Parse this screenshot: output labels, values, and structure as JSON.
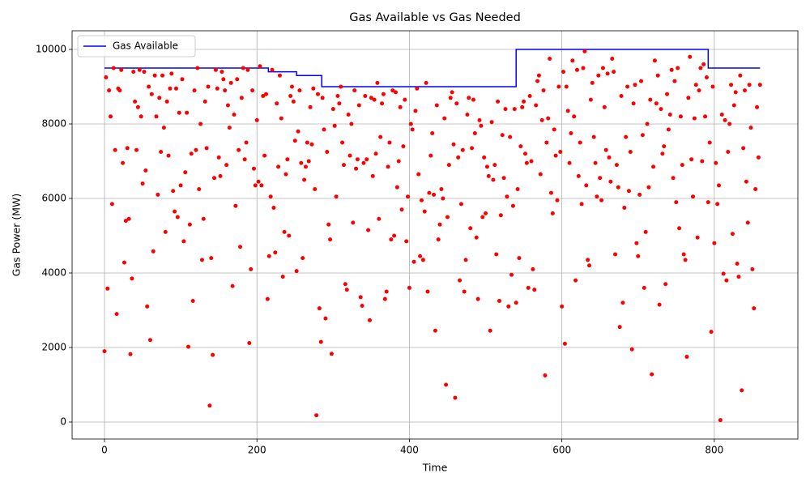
{
  "chart_data": {
    "type": "line",
    "title": "Gas Available vs Gas Needed",
    "xlabel": "Time",
    "ylabel": "Gas Power (MW)",
    "xlim": [
      -42.5,
      909.6
    ],
    "xticks": [
      0,
      200,
      400,
      600,
      800
    ],
    "ylim": [
      -457,
      10500
    ],
    "yticks": [
      0,
      2000,
      4000,
      6000,
      8000,
      10000
    ],
    "grid": true,
    "legend": "upper left",
    "series": [
      {
        "name": "Gas Available",
        "color": "#0000ff",
        "type": "line",
        "x": [
          0,
          215,
          215,
          252,
          252,
          285,
          285,
          540,
          540,
          792,
          792,
          860
        ],
        "values": [
          9500,
          9500,
          9400,
          9400,
          9300,
          9300,
          9000,
          9000,
          10000,
          10000,
          9500,
          9500
        ]
      },
      {
        "color": "#ff0000",
        "type": "scatter",
        "x": [
          0,
          2,
          4,
          6,
          8,
          10,
          12,
          14,
          16,
          18,
          20,
          22,
          24,
          26,
          28,
          30,
          32,
          34,
          36,
          38,
          40,
          42,
          44,
          46,
          48,
          50,
          52,
          54,
          56,
          58,
          60,
          62,
          64,
          66,
          68,
          70,
          72,
          74,
          76,
          78,
          80,
          82,
          84,
          86,
          88,
          90,
          92,
          94,
          96,
          98,
          100,
          102,
          104,
          106,
          108,
          110,
          112,
          114,
          116,
          118,
          120,
          122,
          124,
          126,
          128,
          130,
          132,
          134,
          136,
          138,
          140,
          142,
          144,
          146,
          148,
          150,
          152,
          154,
          156,
          158,
          160,
          162,
          164,
          166,
          168,
          170,
          172,
          174,
          176,
          178,
          180,
          182,
          184,
          186,
          188,
          190,
          192,
          194,
          196,
          198,
          200,
          202,
          204,
          206,
          208,
          210,
          212,
          214,
          216,
          218,
          220,
          222,
          224,
          226,
          228,
          230,
          232,
          234,
          236,
          238,
          240,
          242,
          244,
          246,
          248,
          250,
          252,
          254,
          256,
          258,
          260,
          262,
          264,
          266,
          268,
          270,
          272,
          274,
          276,
          278,
          280,
          282,
          284,
          286,
          288,
          290,
          292,
          294,
          296,
          298,
          300,
          302,
          304,
          306,
          308,
          310,
          312,
          314,
          316,
          318,
          320,
          322,
          324,
          326,
          328,
          330,
          332,
          334,
          336,
          338,
          340,
          342,
          344,
          346,
          348,
          350,
          352,
          354,
          356,
          358,
          360,
          362,
          364,
          366,
          368,
          370,
          372,
          374,
          376,
          378,
          380,
          382,
          384,
          386,
          388,
          390,
          392,
          394,
          396,
          398,
          400,
          402,
          404,
          406,
          408,
          410,
          412,
          414,
          416,
          418,
          420,
          422,
          424,
          426,
          428,
          430,
          432,
          434,
          436,
          438,
          440,
          442,
          444,
          446,
          448,
          450,
          452,
          454,
          456,
          458,
          460,
          462,
          464,
          466,
          468,
          470,
          472,
          474,
          476,
          478,
          480,
          482,
          484,
          486,
          488,
          490,
          492,
          494,
          496,
          498,
          500,
          502,
          504,
          506,
          508,
          510,
          512,
          514,
          516,
          518,
          520,
          522,
          524,
          526,
          528,
          530,
          532,
          534,
          536,
          538,
          540,
          542,
          544,
          546,
          548,
          550,
          552,
          554,
          556,
          558,
          560,
          562,
          564,
          566,
          568,
          570,
          572,
          574,
          576,
          578,
          580,
          582,
          584,
          586,
          588,
          590,
          592,
          594,
          596,
          598,
          600,
          602,
          604,
          606,
          608,
          610,
          612,
          614,
          616,
          618,
          620,
          622,
          624,
          626,
          628,
          630,
          632,
          634,
          636,
          638,
          640,
          642,
          644,
          646,
          648,
          650,
          652,
          654,
          656,
          658,
          660,
          662,
          664,
          666,
          668,
          670,
          672,
          674,
          676,
          678,
          680,
          682,
          684,
          686,
          688,
          690,
          692,
          694,
          696,
          698,
          700,
          702,
          704,
          706,
          708,
          710,
          712,
          714,
          716,
          718,
          720,
          722,
          724,
          726,
          728,
          730,
          732,
          734,
          736,
          738,
          740,
          742,
          744,
          746,
          748,
          750,
          752,
          754,
          756,
          758,
          760,
          762,
          764,
          766,
          768,
          770,
          772,
          774,
          776,
          778,
          780,
          782,
          784,
          786,
          788,
          790,
          792,
          794,
          796,
          798,
          800,
          802,
          804,
          806,
          808,
          810,
          812,
          814,
          816,
          818,
          820,
          822,
          824,
          826,
          828,
          830,
          832,
          834,
          836,
          838,
          840,
          842,
          844,
          846,
          848,
          850,
          852,
          854,
          856,
          858,
          860
        ],
        "values": [
          1900,
          9250,
          3580,
          8900,
          8200,
          5850,
          9500,
          7300,
          2900,
          8950,
          8900,
          9450,
          6950,
          4280,
          5400,
          7350,
          5450,
          1820,
          3850,
          9400,
          8600,
          7300,
          8450,
          9450,
          8200,
          6400,
          9400,
          6750,
          3100,
          9000,
          2200,
          8800,
          4580,
          9300,
          8200,
          6100,
          8700,
          7250,
          9300,
          7900,
          5100,
          8600,
          7150,
          8950,
          9350,
          6200,
          5650,
          8950,
          5500,
          8300,
          6350,
          9200,
          4850,
          6700,
          8300,
          2020,
          5300,
          7200,
          3250,
          8900,
          7300,
          9500,
          6250,
          8000,
          4350,
          5450,
          8600,
          7350,
          9000,
          440,
          4400,
          1800,
          6550,
          9450,
          8950,
          7100,
          6600,
          9400,
          9200,
          8900,
          6900,
          8500,
          7900,
          9100,
          3650,
          8250,
          5800,
          9200,
          7300,
          4700,
          8700,
          9500,
          7050,
          7500,
          9450,
          2120,
          4100,
          8900,
          6800,
          6350,
          8100,
          6450,
          9550,
          6350,
          8750,
          7150,
          8800,
          3300,
          4450,
          6050,
          9450,
          5750,
          4550,
          8550,
          6850,
          9300,
          8150,
          3900,
          5100,
          6650,
          7050,
          5000,
          8750,
          9000,
          8600,
          7550,
          4050,
          7800,
          8900,
          6950,
          4400,
          6500,
          6850,
          7500,
          7000,
          8450,
          7450,
          8950,
          6250,
          180,
          8800,
          3050,
          2150,
          8700,
          7850,
          2780,
          7250,
          5300,
          4900,
          1830,
          8400,
          7950,
          6050,
          8750,
          8550,
          9000,
          7500,
          6900,
          3700,
          3550,
          8250,
          7150,
          8000,
          5350,
          8900,
          6800,
          7050,
          8500,
          3350,
          3120,
          6950,
          8750,
          7050,
          5150,
          2730,
          8700,
          6600,
          8650,
          7200,
          9100,
          5450,
          7650,
          8550,
          8800,
          3300,
          3500,
          6850,
          7500,
          4900,
          8900,
          5000,
          8850,
          6300,
          7000,
          8450,
          5700,
          7400,
          8650,
          4850,
          6050,
          3600,
          8000,
          7850,
          4300,
          8350,
          8950,
          6650,
          4450,
          5950,
          4350,
          5650,
          9100,
          3500,
          6150,
          7150,
          7750,
          6100,
          2450,
          8500,
          4900,
          5300,
          6250,
          6000,
          8150,
          1000,
          5500,
          6900,
          8700,
          8850,
          7450,
          650,
          8550,
          7100,
          3800,
          5850,
          7300,
          3500,
          4350,
          8250,
          8700,
          5200,
          7350,
          8650,
          7750,
          4950,
          3300,
          8100,
          7950,
          5500,
          7100,
          5600,
          6850,
          6600,
          2450,
          8050,
          6500,
          6900,
          4500,
          8600,
          3250,
          5550,
          7700,
          6550,
          8400,
          6050,
          3100,
          7650,
          3950,
          5800,
          8400,
          3200,
          6250,
          4400,
          7400,
          8450,
          8600,
          7200,
          6950,
          3600,
          8750,
          7000,
          4100,
          3550,
          8500,
          9150,
          9300,
          6650,
          8100,
          8900,
          1250,
          7500,
          8150,
          9750,
          6150,
          5600,
          7850,
          7150,
          5950,
          9000,
          7250,
          3100,
          9400,
          2100,
          9000,
          8350,
          6950,
          7750,
          9700,
          8200,
          3800,
          9450,
          6600,
          7500,
          5850,
          9500,
          9950,
          6350,
          4350,
          4200,
          8650,
          9100,
          7650,
          6950,
          6050,
          9300,
          6550,
          5950,
          9500,
          8450,
          7300,
          9350,
          7100,
          6450,
          9750,
          9400,
          4500,
          6900,
          6300,
          2550,
          8750,
          3200,
          5750,
          7650,
          9000,
          6200,
          7250,
          1950,
          8550,
          9050,
          4800,
          4450,
          6100,
          9150,
          7700,
          3600,
          5100,
          8000,
          6300,
          8650,
          1280,
          6850,
          9700,
          8550,
          9300,
          3150,
          8400,
          7200,
          7400,
          3700,
          8800,
          7850,
          8250,
          9450,
          6550,
          9150,
          5900,
          9500,
          5200,
          8200,
          6900,
          4500,
          4350,
          1750,
          8700,
          9800,
          7050,
          6050,
          8150,
          9050,
          4950,
          8900,
          9500,
          7000,
          9600,
          8200,
          9250,
          5900,
          7500,
          2420,
          9000,
          4800,
          6950,
          5850,
          6350,
          50,
          8250,
          3980,
          8100,
          3800,
          7250,
          8000,
          9050,
          5050,
          8500,
          8850,
          4250,
          3900,
          9300,
          850,
          7350,
          8900,
          6450,
          5350,
          9050,
          7900,
          4100,
          3050,
          6250,
          8450,
          7100,
          9050
        ]
      }
    ]
  }
}
